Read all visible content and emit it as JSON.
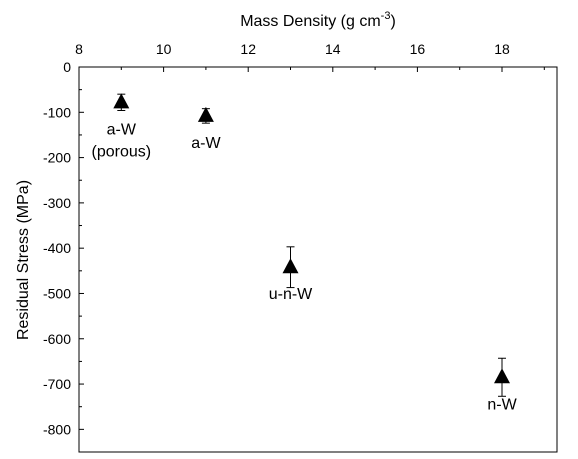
{
  "chart_data": {
    "type": "scatter",
    "xlabel": "Mass Density (g cm",
    "xlabel_sup": "-3",
    "xlabel_close": ")",
    "ylabel": "Residual Stress (MPa)",
    "xlim": [
      8,
      19.3
    ],
    "ylim": [
      -850,
      0
    ],
    "x_ticks": [
      "8",
      "10",
      "12",
      "14",
      "16",
      "18"
    ],
    "y_ticks": [
      "0",
      "-100",
      "-200",
      "-300",
      "-400",
      "-500",
      "-600",
      "-700",
      "-800"
    ],
    "x_axis_position": "top",
    "grid": false,
    "marker": "filled-triangle",
    "points": [
      {
        "x": 9.0,
        "y": -78,
        "err": 18,
        "label_lines": [
          "a-W",
          "(porous)"
        ]
      },
      {
        "x": 11.0,
        "y": -108,
        "err": 16,
        "label_lines": [
          "a-W"
        ]
      },
      {
        "x": 13.0,
        "y": -442,
        "err": 45,
        "label_lines": [
          "u-n-W"
        ]
      },
      {
        "x": 18.0,
        "y": -685,
        "err": 42,
        "label_lines": [
          "n-W"
        ]
      }
    ],
    "colors": {
      "marker": "#000000",
      "axis": "#000000"
    }
  }
}
